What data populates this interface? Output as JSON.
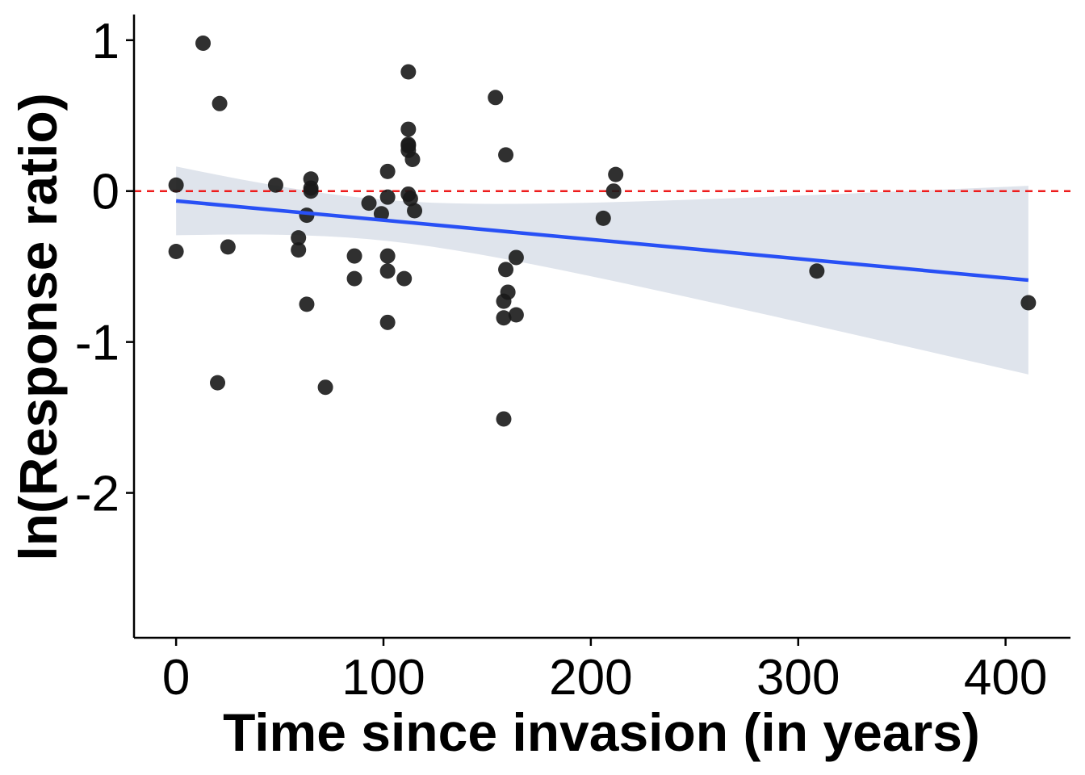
{
  "chart_data": {
    "type": "scatter",
    "title": "",
    "xlabel": "Time since invasion (in years)",
    "ylabel": "ln(Response ratio)",
    "xlim": [
      -20.3,
      431.3
    ],
    "ylim": [
      -2.96,
      1.17
    ],
    "xticks": [
      0,
      100,
      200,
      300,
      400
    ],
    "xtick_labels": [
      "0",
      "100",
      "200",
      "300",
      "400"
    ],
    "yticks": [
      1,
      0,
      -1,
      -2
    ],
    "ytick_labels": [
      "1",
      "0",
      "-1",
      "-2"
    ],
    "grid": false,
    "legend": "none",
    "reference_line": {
      "y": 0,
      "style": "dashed",
      "color": "#ee1c1c"
    },
    "fit": {
      "type": "linear",
      "x": [
        0,
        411
      ],
      "y": [
        -0.065,
        -0.59
      ],
      "ci_lower": [
        -0.33,
        -1.22
      ],
      "ci_upper": [
        0.2,
        0.03
      ],
      "line_color": "#2850f5",
      "band_color": "#dfe4ec"
    },
    "point_color": "#1a1a1a",
    "points": [
      {
        "x": 0,
        "y": 0.04
      },
      {
        "x": 0,
        "y": -0.4
      },
      {
        "x": 13,
        "y": 0.98
      },
      {
        "x": 21,
        "y": 0.58
      },
      {
        "x": 20,
        "y": -1.27
      },
      {
        "x": 25,
        "y": -0.37
      },
      {
        "x": 48,
        "y": 0.04
      },
      {
        "x": 59,
        "y": -0.31
      },
      {
        "x": 59,
        "y": -0.39
      },
      {
        "x": 63,
        "y": -0.16
      },
      {
        "x": 63,
        "y": -0.75
      },
      {
        "x": 65,
        "y": 0.08
      },
      {
        "x": 65,
        "y": 0.02
      },
      {
        "x": 65,
        "y": 0.0
      },
      {
        "x": 72,
        "y": -1.3
      },
      {
        "x": 86,
        "y": -0.43
      },
      {
        "x": 86,
        "y": -0.58
      },
      {
        "x": 93,
        "y": -0.08
      },
      {
        "x": 99,
        "y": -0.15
      },
      {
        "x": 102,
        "y": 0.13
      },
      {
        "x": 102,
        "y": -0.04
      },
      {
        "x": 102,
        "y": -0.43
      },
      {
        "x": 102,
        "y": -0.53
      },
      {
        "x": 102,
        "y": -0.87
      },
      {
        "x": 110,
        "y": -0.58
      },
      {
        "x": 112,
        "y": 0.79
      },
      {
        "x": 112,
        "y": 0.41
      },
      {
        "x": 112,
        "y": 0.31
      },
      {
        "x": 112,
        "y": 0.3
      },
      {
        "x": 112,
        "y": 0.27
      },
      {
        "x": 112,
        "y": -0.02
      },
      {
        "x": 113,
        "y": -0.05
      },
      {
        "x": 114,
        "y": 0.21
      },
      {
        "x": 115,
        "y": -0.13
      },
      {
        "x": 154,
        "y": 0.62
      },
      {
        "x": 158,
        "y": -0.73
      },
      {
        "x": 158,
        "y": -0.84
      },
      {
        "x": 158,
        "y": -1.51
      },
      {
        "x": 159,
        "y": 0.24
      },
      {
        "x": 159,
        "y": -0.52
      },
      {
        "x": 160,
        "y": -0.67
      },
      {
        "x": 164,
        "y": -0.44
      },
      {
        "x": 164,
        "y": -0.82
      },
      {
        "x": 206,
        "y": -0.18
      },
      {
        "x": 211,
        "y": 0.0
      },
      {
        "x": 212,
        "y": 0.11
      },
      {
        "x": 309,
        "y": -0.53
      },
      {
        "x": 411,
        "y": -0.74
      }
    ]
  }
}
